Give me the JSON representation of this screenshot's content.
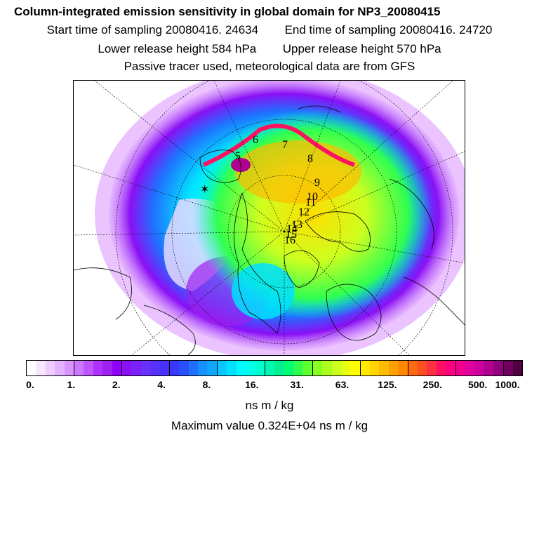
{
  "header": {
    "title": "Column-integrated emission sensitivity in global domain for NP3_20080415",
    "start_label": "Start time of sampling 20080416. 24634",
    "end_label": "End time of sampling 20080416. 24720",
    "lower_label": "Lower release height  584 hPa",
    "upper_label": "Upper release height  570 hPa",
    "tracer_note": "Passive tracer used, meteorological data are from GFS"
  },
  "colorbar": {
    "tick_labels": [
      "0.",
      "1.",
      "2.",
      "4.",
      "8.",
      "16.",
      "31.",
      "63.",
      "125.",
      "250.",
      "500.",
      "1000."
    ],
    "unit": "ns m / kg",
    "colors": [
      "#ffffff",
      "#f6e6ff",
      "#eeccff",
      "#e4b0ff",
      "#da94ff",
      "#cc77ff",
      "#bf55ff",
      "#b030ff",
      "#a020f0",
      "#9400ff",
      "#8a10f5",
      "#7a20ff",
      "#6a30ff",
      "#5a30ff",
      "#4a30ff",
      "#3838ff",
      "#2a50ff",
      "#2070ff",
      "#1890ff",
      "#10a8ff",
      "#08c8ff",
      "#00e0ff",
      "#00f8ff",
      "#00ffe8",
      "#00ffd0",
      "#00f8b0",
      "#00f090",
      "#00ff70",
      "#30ff50",
      "#60ff30",
      "#88ff20",
      "#aaff20",
      "#ccff20",
      "#e8ff10",
      "#ffff00",
      "#ffea00",
      "#ffd400",
      "#ffbb00",
      "#ffa000",
      "#ff8800",
      "#ff6a10",
      "#ff5020",
      "#ff3040",
      "#ff1060",
      "#ff0080",
      "#f00090",
      "#e000a0",
      "#cc00a0",
      "#b00090",
      "#900080",
      "#700060",
      "#500040"
    ]
  },
  "footer": {
    "max_value": "Maximum value  0.324E+04 ns m / kg"
  },
  "map": {
    "track_labels": [
      "5",
      "6",
      "7",
      "8",
      "9",
      "10",
      "11",
      "12",
      "13",
      "14",
      "15",
      "16"
    ]
  }
}
